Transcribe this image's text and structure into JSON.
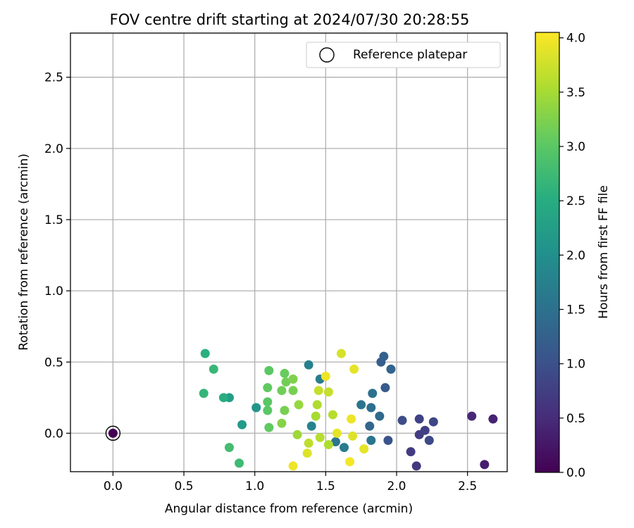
{
  "chart_data": {
    "type": "scatter",
    "title": "FOV centre drift starting at 2024/07/30 20:28:55",
    "xlabel": "Angular distance from reference (arcmin)",
    "ylabel": "Rotation from reference (arcmin)",
    "xlim": [
      -0.3,
      2.78
    ],
    "ylim": [
      -0.27,
      2.81
    ],
    "xticks": [
      0.0,
      0.5,
      1.0,
      1.5,
      2.0,
      2.5
    ],
    "yticks": [
      0.0,
      0.5,
      1.0,
      1.5,
      2.0,
      2.5
    ],
    "grid": true,
    "legend": {
      "placement": "top-right",
      "label": "Reference platepar"
    },
    "reference_point": {
      "x": 0.0,
      "y": 0.0
    },
    "colorbar": {
      "label": "Hours from first FF file",
      "colormap": "viridis",
      "range": [
        0.0,
        4.05
      ],
      "ticks": [
        0.0,
        0.5,
        1.0,
        1.5,
        2.0,
        2.5,
        3.0,
        3.5,
        4.0
      ]
    },
    "points": [
      {
        "x": 0.0,
        "y": 0.0,
        "c": 0.0
      },
      {
        "x": 2.62,
        "y": -0.22,
        "c": 0.35
      },
      {
        "x": 2.68,
        "y": 0.1,
        "c": 0.4
      },
      {
        "x": 2.53,
        "y": 0.12,
        "c": 0.45
      },
      {
        "x": 2.14,
        "y": -0.23,
        "c": 0.65
      },
      {
        "x": 2.1,
        "y": -0.13,
        "c": 0.7
      },
      {
        "x": 2.16,
        "y": -0.01,
        "c": 0.72
      },
      {
        "x": 2.2,
        "y": 0.02,
        "c": 0.75
      },
      {
        "x": 2.16,
        "y": 0.1,
        "c": 0.8
      },
      {
        "x": 2.26,
        "y": 0.08,
        "c": 0.85
      },
      {
        "x": 2.23,
        "y": -0.05,
        "c": 0.9
      },
      {
        "x": 2.04,
        "y": 0.09,
        "c": 0.95
      },
      {
        "x": 1.94,
        "y": -0.05,
        "c": 1.05
      },
      {
        "x": 1.92,
        "y": 0.32,
        "c": 1.15
      },
      {
        "x": 1.89,
        "y": 0.5,
        "c": 1.2
      },
      {
        "x": 1.91,
        "y": 0.54,
        "c": 1.25
      },
      {
        "x": 1.96,
        "y": 0.45,
        "c": 1.3
      },
      {
        "x": 1.81,
        "y": 0.05,
        "c": 1.35
      },
      {
        "x": 1.88,
        "y": 0.12,
        "c": 1.4
      },
      {
        "x": 1.82,
        "y": 0.18,
        "c": 1.45
      },
      {
        "x": 1.83,
        "y": 0.28,
        "c": 1.5
      },
      {
        "x": 1.75,
        "y": 0.2,
        "c": 1.55
      },
      {
        "x": 1.82,
        "y": -0.05,
        "c": 1.55
      },
      {
        "x": 1.57,
        "y": -0.06,
        "c": 1.6
      },
      {
        "x": 1.63,
        "y": -0.1,
        "c": 1.65
      },
      {
        "x": 1.46,
        "y": 0.38,
        "c": 1.7
      },
      {
        "x": 1.38,
        "y": 0.48,
        "c": 1.75
      },
      {
        "x": 1.4,
        "y": 0.05,
        "c": 1.8
      },
      {
        "x": 1.01,
        "y": 0.18,
        "c": 2.1
      },
      {
        "x": 0.91,
        "y": 0.06,
        "c": 2.2
      },
      {
        "x": 0.82,
        "y": 0.25,
        "c": 2.25
      },
      {
        "x": 0.78,
        "y": 0.25,
        "c": 2.5
      },
      {
        "x": 0.65,
        "y": 0.56,
        "c": 2.55
      },
      {
        "x": 0.64,
        "y": 0.28,
        "c": 2.65
      },
      {
        "x": 0.89,
        "y": -0.21,
        "c": 2.75
      },
      {
        "x": 0.71,
        "y": 0.45,
        "c": 2.7
      },
      {
        "x": 0.82,
        "y": -0.1,
        "c": 2.8
      },
      {
        "x": 1.1,
        "y": 0.44,
        "c": 3.0
      },
      {
        "x": 1.09,
        "y": 0.32,
        "c": 3.05
      },
      {
        "x": 1.09,
        "y": 0.22,
        "c": 3.0
      },
      {
        "x": 1.1,
        "y": 0.04,
        "c": 3.05
      },
      {
        "x": 1.09,
        "y": 0.16,
        "c": 3.0
      },
      {
        "x": 1.21,
        "y": 0.42,
        "c": 3.1
      },
      {
        "x": 1.19,
        "y": 0.3,
        "c": 3.15
      },
      {
        "x": 1.22,
        "y": 0.36,
        "c": 3.15
      },
      {
        "x": 1.27,
        "y": 0.38,
        "c": 3.25
      },
      {
        "x": 1.27,
        "y": 0.3,
        "c": 3.2
      },
      {
        "x": 1.21,
        "y": 0.16,
        "c": 3.2
      },
      {
        "x": 1.19,
        "y": 0.07,
        "c": 3.3
      },
      {
        "x": 1.31,
        "y": 0.2,
        "c": 3.4
      },
      {
        "x": 1.3,
        "y": -0.01,
        "c": 3.45
      },
      {
        "x": 1.43,
        "y": 0.12,
        "c": 3.5
      },
      {
        "x": 1.44,
        "y": 0.2,
        "c": 3.55
      },
      {
        "x": 1.45,
        "y": 0.3,
        "c": 3.7
      },
      {
        "x": 1.38,
        "y": -0.07,
        "c": 3.65
      },
      {
        "x": 1.46,
        "y": -0.03,
        "c": 3.6
      },
      {
        "x": 1.52,
        "y": 0.29,
        "c": 3.7
      },
      {
        "x": 1.52,
        "y": -0.08,
        "c": 3.55
      },
      {
        "x": 1.55,
        "y": 0.13,
        "c": 3.6
      },
      {
        "x": 1.37,
        "y": -0.14,
        "c": 3.85
      },
      {
        "x": 1.27,
        "y": -0.23,
        "c": 3.95
      },
      {
        "x": 1.5,
        "y": 0.4,
        "c": 3.95
      },
      {
        "x": 1.58,
        "y": 0.0,
        "c": 3.9
      },
      {
        "x": 1.61,
        "y": 0.56,
        "c": 3.8
      },
      {
        "x": 1.68,
        "y": 0.1,
        "c": 3.95
      },
      {
        "x": 1.69,
        "y": -0.02,
        "c": 3.85
      },
      {
        "x": 1.7,
        "y": 0.45,
        "c": 3.9
      },
      {
        "x": 1.67,
        "y": -0.2,
        "c": 4.0
      },
      {
        "x": 1.77,
        "y": -0.11,
        "c": 3.9
      }
    ]
  }
}
